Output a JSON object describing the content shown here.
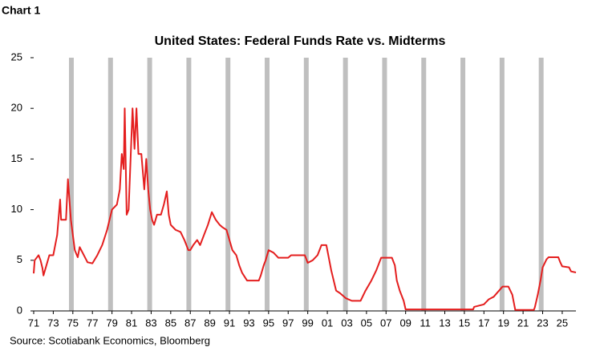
{
  "label": "Chart 1",
  "chart_data": {
    "type": "line",
    "title": "United States: Federal Funds Rate vs. Midterms",
    "source": "Source: Scotiabank Economics, Bloomberg",
    "midterms": [
      1974.85,
      1978.85,
      1982.85,
      1986.85,
      1990.85,
      1994.85,
      1998.85,
      2002.85,
      2006.85,
      2010.85,
      2014.85,
      2018.85,
      2022.85
    ],
    "midterm_color": "#bfbfbf",
    "xlim": [
      1971,
      2026.4
    ],
    "ylim": [
      0,
      25
    ],
    "yticks": [
      0,
      5,
      10,
      15,
      20,
      25
    ],
    "xticks": [
      {
        "value": 1971,
        "label": "71"
      },
      {
        "value": 1973,
        "label": "73"
      },
      {
        "value": 1975,
        "label": "75"
      },
      {
        "value": 1977,
        "label": "77"
      },
      {
        "value": 1979,
        "label": "79"
      },
      {
        "value": 1981,
        "label": "81"
      },
      {
        "value": 1983,
        "label": "83"
      },
      {
        "value": 1985,
        "label": "85"
      },
      {
        "value": 1987,
        "label": "87"
      },
      {
        "value": 1989,
        "label": "89"
      },
      {
        "value": 1991,
        "label": "91"
      },
      {
        "value": 1993,
        "label": "93"
      },
      {
        "value": 1995,
        "label": "95"
      },
      {
        "value": 1997,
        "label": "97"
      },
      {
        "value": 1999,
        "label": "99"
      },
      {
        "value": 2001,
        "label": "01"
      },
      {
        "value": 2003,
        "label": "03"
      },
      {
        "value": 2005,
        "label": "05"
      },
      {
        "value": 2007,
        "label": "07"
      },
      {
        "value": 2009,
        "label": "09"
      },
      {
        "value": 2011,
        "label": "11"
      },
      {
        "value": 2013,
        "label": "13"
      },
      {
        "value": 2015,
        "label": "15"
      },
      {
        "value": 2017,
        "label": "17"
      },
      {
        "value": 2019,
        "label": "19"
      },
      {
        "value": 2021,
        "label": "21"
      },
      {
        "value": 2023,
        "label": "23"
      },
      {
        "value": 2025,
        "label": "25"
      }
    ],
    "x": [
      1971.0,
      1971.1,
      1971.5,
      1971.7,
      1971.9,
      1972.0,
      1972.3,
      1972.6,
      1973.0,
      1973.4,
      1973.7,
      1973.8,
      1974.3,
      1974.5,
      1974.8,
      1975.2,
      1975.5,
      1975.7,
      1976.5,
      1977.0,
      1977.5,
      1978.0,
      1978.5,
      1979.0,
      1979.5,
      1979.8,
      1980.0,
      1980.2,
      1980.3,
      1980.5,
      1980.7,
      1980.9,
      1981.1,
      1981.3,
      1981.5,
      1981.7,
      1982.0,
      1982.3,
      1982.5,
      1982.7,
      1982.9,
      1983.1,
      1983.3,
      1983.6,
      1984.0,
      1984.3,
      1984.6,
      1984.8,
      1985.0,
      1985.5,
      1986.0,
      1986.4,
      1986.8,
      1987.0,
      1987.3,
      1987.7,
      1988.0,
      1988.4,
      1988.8,
      1989.2,
      1989.6,
      1990.0,
      1990.3,
      1990.7,
      1991.0,
      1991.3,
      1991.7,
      1992.0,
      1992.3,
      1992.8,
      1993.5,
      1994.0,
      1994.2,
      1994.5,
      1994.7,
      1995.0,
      1995.5,
      1996.0,
      1997.0,
      1997.3,
      1998.7,
      1999.0,
      1999.5,
      2000.0,
      2000.4,
      2000.9,
      2001.1,
      2001.4,
      2001.9,
      2002.3,
      2002.9,
      2003.5,
      2004.4,
      2004.9,
      2005.5,
      2006.0,
      2006.5,
      2007.6,
      2007.9,
      2008.1,
      2008.4,
      2008.8,
      2009.0,
      2015.9,
      2016.0,
      2017.0,
      2017.5,
      2018.0,
      2018.9,
      2019.5,
      2019.9,
      2020.2,
      2022.1,
      2022.2,
      2022.5,
      2022.8,
      2023.0,
      2023.4,
      2023.6,
      2024.6,
      2024.8,
      2025.0,
      2025.7,
      2025.9,
      2026.4
    ],
    "series": [
      {
        "name": "Federal Funds Rate",
        "color": "#e41e1e",
        "values": [
          3.7,
          5.0,
          5.5,
          5.0,
          4.2,
          3.5,
          4.5,
          5.5,
          5.5,
          7.5,
          11.0,
          9.0,
          9.0,
          13.0,
          9.0,
          6.0,
          5.3,
          6.3,
          4.8,
          4.7,
          5.5,
          6.5,
          8.0,
          10.0,
          10.5,
          12.0,
          15.5,
          14.0,
          20.0,
          9.5,
          10.0,
          15.0,
          20.0,
          16.0,
          20.0,
          15.5,
          15.5,
          12.0,
          15.0,
          12.0,
          10.0,
          9.0,
          8.5,
          9.5,
          9.5,
          10.5,
          11.8,
          9.5,
          8.5,
          8.0,
          7.8,
          7.0,
          6.0,
          6.0,
          6.5,
          7.0,
          6.5,
          7.5,
          8.5,
          9.75,
          9.0,
          8.5,
          8.25,
          8.0,
          7.0,
          6.0,
          5.5,
          4.5,
          3.75,
          3.0,
          3.0,
          3.0,
          3.5,
          4.5,
          5.0,
          6.0,
          5.75,
          5.25,
          5.25,
          5.5,
          5.5,
          4.75,
          5.0,
          5.5,
          6.5,
          6.5,
          5.5,
          4.0,
          2.0,
          1.75,
          1.25,
          1.0,
          1.0,
          2.0,
          3.0,
          4.0,
          5.25,
          5.25,
          4.5,
          3.0,
          2.0,
          1.0,
          0.15,
          0.15,
          0.4,
          0.65,
          1.15,
          1.4,
          2.4,
          2.4,
          1.6,
          0.1,
          0.1,
          0.35,
          1.6,
          3.1,
          4.3,
          5.1,
          5.3,
          5.3,
          4.8,
          4.4,
          4.3,
          3.9,
          3.8
        ]
      }
    ]
  }
}
